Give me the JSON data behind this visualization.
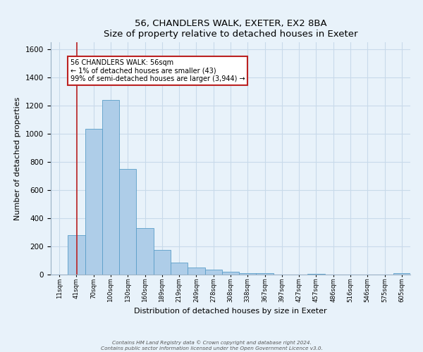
{
  "title": "56, CHANDLERS WALK, EXETER, EX2 8BA",
  "subtitle": "Size of property relative to detached houses in Exeter",
  "xlabel": "Distribution of detached houses by size in Exeter",
  "ylabel": "Number of detached properties",
  "bin_labels": [
    "11sqm",
    "41sqm",
    "70sqm",
    "100sqm",
    "130sqm",
    "160sqm",
    "189sqm",
    "219sqm",
    "249sqm",
    "278sqm",
    "308sqm",
    "338sqm",
    "367sqm",
    "397sqm",
    "427sqm",
    "457sqm",
    "486sqm",
    "516sqm",
    "546sqm",
    "575sqm",
    "605sqm"
  ],
  "bar_values": [
    0,
    280,
    1035,
    1240,
    750,
    330,
    175,
    85,
    50,
    37,
    20,
    10,
    8,
    0,
    0,
    5,
    0,
    0,
    0,
    0,
    8
  ],
  "bar_color": "#aecde8",
  "bar_edge_color": "#5a9ec8",
  "grid_color": "#c8daea",
  "background_color": "#e8f2fa",
  "vline_color": "#bb2222",
  "annotation_text": "56 CHANDLERS WALK: 56sqm\n← 1% of detached houses are smaller (43)\n99% of semi-detached houses are larger (3,944) →",
  "annotation_box_color": "#ffffff",
  "annotation_box_edge": "#bb2222",
  "ylim": [
    0,
    1650
  ],
  "yticks": [
    0,
    200,
    400,
    600,
    800,
    1000,
    1200,
    1400,
    1600
  ],
  "footer1": "Contains HM Land Registry data © Crown copyright and database right 2024.",
  "footer2": "Contains public sector information licensed under the Open Government Licence v3.0."
}
